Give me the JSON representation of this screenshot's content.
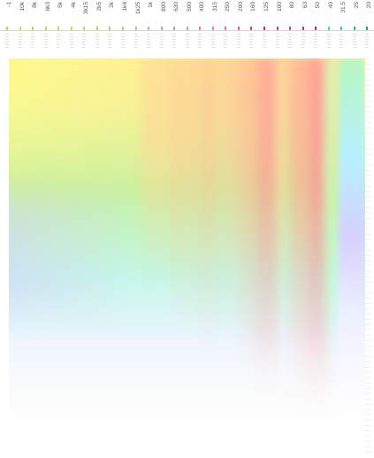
{
  "frequency_labels": [
    "-1",
    "10k",
    "8k",
    "6k3",
    "5k",
    "4k",
    "3k15",
    "2k5",
    "2k",
    "1k6",
    "1k25",
    "1k",
    "800",
    "630",
    "500",
    "400",
    "315",
    "250",
    "200",
    "160",
    "125",
    "100",
    "80",
    "63",
    "50",
    "40",
    "31.5",
    "25",
    "20"
  ],
  "label_colors": [
    "#cccc33",
    "#dddd33",
    "#ddcc33",
    "#ddcc44",
    "#ddcc44",
    "#ddcc55",
    "#ddcc55",
    "#ddbb66",
    "#ddbb66",
    "#ddbb77",
    "#ddbb77",
    "#ddaa77",
    "#dd9977",
    "#dd9977",
    "#dd9988",
    "#dd8888",
    "#dd8888",
    "#dd7777",
    "#dd6666",
    "#dd4444",
    "#dd2222",
    "#ee3333",
    "#ee4433",
    "#dd3333",
    "#dd2222",
    "#55ccdd",
    "#44cc88",
    "#33bb66",
    "#22aa55"
  ],
  "palette": {
    "yellow": "#fff78f",
    "salmon": "#ff9f9a",
    "green": "#b6f7c0",
    "cyan": "#c4f7e8",
    "lavender": "#d6d0ff"
  }
}
